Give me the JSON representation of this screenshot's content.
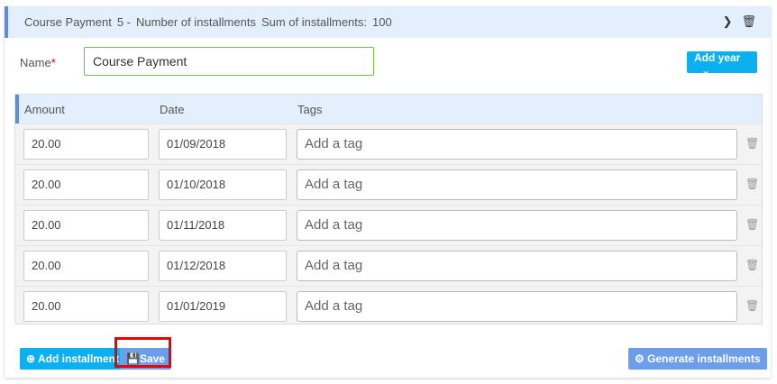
{
  "header": {
    "title": "Course Payment",
    "count": "5 -",
    "count_label": "Number of installments",
    "sum_label": "Sum of installments:",
    "sum": "100"
  },
  "name": {
    "label": "Name",
    "required": "*",
    "value": "Course Payment"
  },
  "add_year": "Add year",
  "table": {
    "columns": [
      "Amount",
      "Date",
      "Tags"
    ],
    "rows": [
      {
        "amount": "20.00",
        "date": "01/09/2018",
        "tags_placeholder": "Add a tag"
      },
      {
        "amount": "20.00",
        "date": "01/10/2018",
        "tags_placeholder": "Add a tag"
      },
      {
        "amount": "20.00",
        "date": "01/11/2018",
        "tags_placeholder": "Add a tag"
      },
      {
        "amount": "20.00",
        "date": "01/12/2018",
        "tags_placeholder": "Add a tag"
      },
      {
        "amount": "20.00",
        "date": "01/01/2019",
        "tags_placeholder": "Add a tag"
      }
    ]
  },
  "buttons": {
    "add_installment": "Add installment",
    "save": "Save",
    "generate": "Generate installments"
  },
  "colors": {
    "accent": "#0ab0ef",
    "secondary": "#6d9eeb",
    "highlight": "#e00000"
  }
}
